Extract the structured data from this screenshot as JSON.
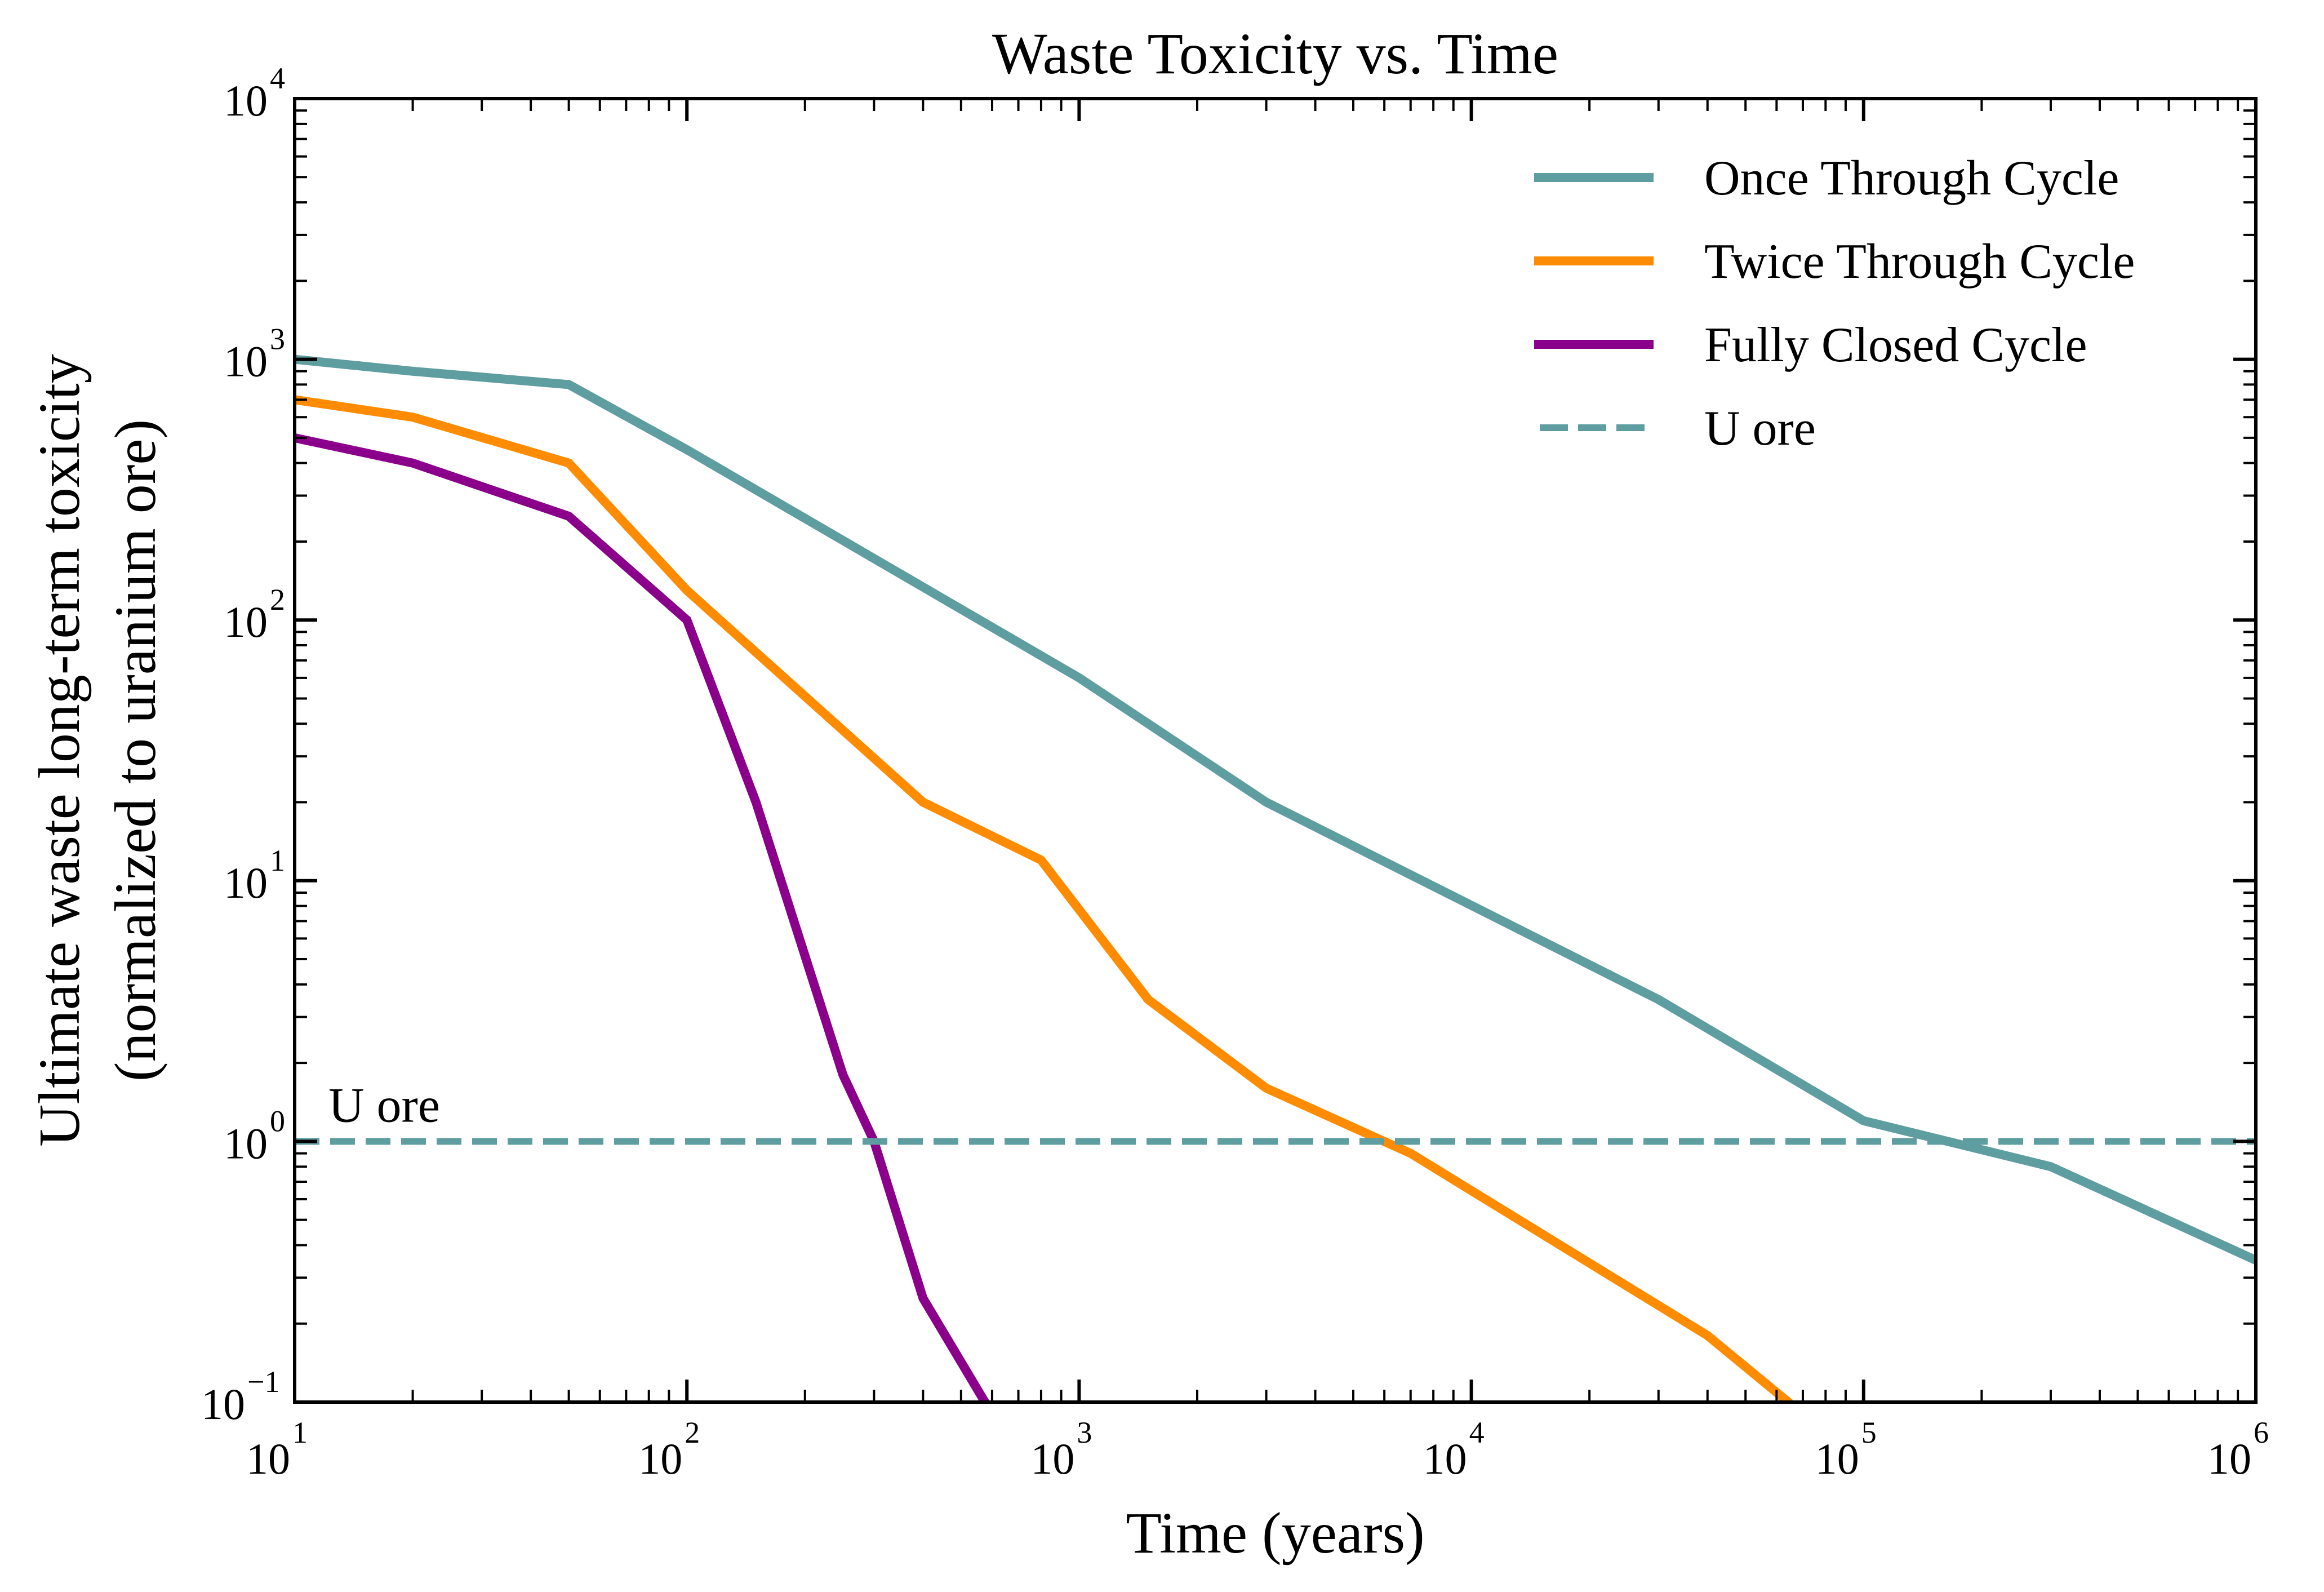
{
  "chart_data": {
    "type": "line",
    "title": "Waste Toxicity vs. Time",
    "xlabel": "Time (years)",
    "ylabel_lines": [
      "Ultimate waste long-term toxicity",
      "(normalized to uranium ore)"
    ],
    "xscale": "log",
    "yscale": "log",
    "xlim": [
      10,
      1000000
    ],
    "ylim": [
      0.1,
      10000
    ],
    "x_tick_exponents": [
      1,
      2,
      3,
      4,
      5,
      6
    ],
    "y_tick_exponents": [
      -1,
      0,
      1,
      2,
      3,
      4
    ],
    "tick_base": "10",
    "grid": false,
    "legend_position": "top-right",
    "series": [
      {
        "name": "Once Through Cycle",
        "color": "#5f9ea0",
        "style": "solid",
        "x": [
          10,
          20,
          50,
          100,
          1000,
          3000,
          30000,
          100000,
          300000,
          1000000
        ],
        "y": [
          1000,
          900,
          800,
          450,
          60,
          20,
          3.5,
          1.2,
          0.8,
          0.35
        ]
      },
      {
        "name": "Twice Through Cycle",
        "color": "#ff8c00",
        "style": "solid",
        "x": [
          10,
          20,
          50,
          100,
          400,
          800,
          1500,
          3000,
          7000,
          40000,
          70000
        ],
        "y": [
          700,
          600,
          400,
          130,
          20,
          12,
          3.5,
          1.6,
          0.9,
          0.18,
          0.09
        ]
      },
      {
        "name": "Fully Closed Cycle",
        "color": "#8b008b",
        "style": "solid",
        "x": [
          10,
          20,
          50,
          100,
          150,
          250,
          300,
          400,
          600
        ],
        "y": [
          500,
          400,
          250,
          100,
          20,
          1.8,
          1.0,
          0.25,
          0.09
        ]
      },
      {
        "name": "U ore",
        "color": "#5f9ea0",
        "style": "dashed",
        "x": [
          10,
          1000000
        ],
        "y": [
          1,
          1
        ]
      }
    ],
    "annotations": [
      {
        "text": "U ore",
        "x": 10,
        "y": 1
      }
    ]
  }
}
